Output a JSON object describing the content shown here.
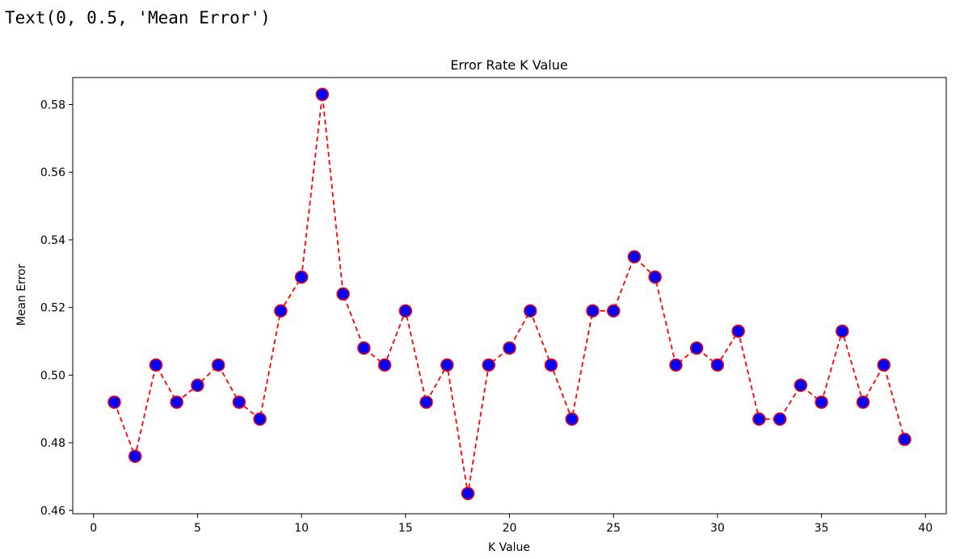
{
  "output": {
    "text": "Text(0, 0.5, 'Mean Error')"
  },
  "chart_data": {
    "type": "line",
    "title": "Error Rate K Value",
    "xlabel": "K Value",
    "ylabel": "Mean Error",
    "xlim": [
      -1,
      41
    ],
    "ylim": [
      0.459,
      0.588
    ],
    "xticks": [
      0,
      5,
      10,
      15,
      20,
      25,
      30,
      35,
      40
    ],
    "yticks": [
      0.46,
      0.48,
      0.5,
      0.52,
      0.54,
      0.56,
      0.58
    ],
    "line_color": "#ff0000",
    "line_style": "dashed",
    "marker_face": "#0000ff",
    "marker_edge": "#ff0000",
    "grid": false,
    "x": [
      1,
      2,
      3,
      4,
      5,
      6,
      7,
      8,
      9,
      10,
      11,
      12,
      13,
      14,
      15,
      16,
      17,
      18,
      19,
      20,
      21,
      22,
      23,
      24,
      25,
      26,
      27,
      28,
      29,
      30,
      31,
      32,
      33,
      34,
      35,
      36,
      37,
      38,
      39
    ],
    "y": [
      0.492,
      0.476,
      0.503,
      0.492,
      0.497,
      0.503,
      0.492,
      0.487,
      0.519,
      0.529,
      0.583,
      0.524,
      0.508,
      0.503,
      0.519,
      0.492,
      0.503,
      0.465,
      0.503,
      0.508,
      0.519,
      0.503,
      0.487,
      0.519,
      0.519,
      0.535,
      0.529,
      0.503,
      0.508,
      0.503,
      0.513,
      0.487,
      0.487,
      0.497,
      0.492,
      0.513,
      0.492,
      0.503,
      0.481
    ]
  }
}
